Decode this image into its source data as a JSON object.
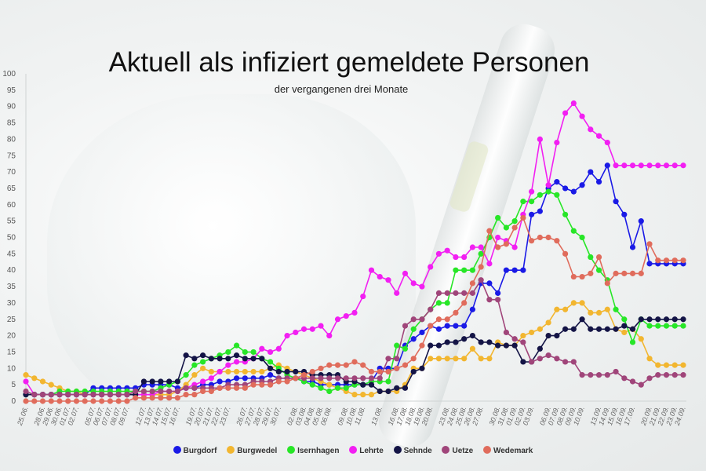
{
  "title": "Aktuell als infiziert gemeldete Personen",
  "subtitle": "der vergangenen drei Monate",
  "chart_data": {
    "type": "line",
    "title": "Aktuell als infiziert gemeldete Personen",
    "subtitle": "der vergangenen drei Monate",
    "ylim": [
      0,
      100
    ],
    "yticks": [
      0,
      5,
      10,
      15,
      20,
      25,
      30,
      35,
      40,
      45,
      50,
      55,
      60,
      65,
      70,
      75,
      80,
      85,
      90,
      95,
      100
    ],
    "grid": false,
    "legend": "bottom",
    "x": [
      "25.06.",
      "26.06.",
      "28.06.",
      "29.06.",
      "30.06.",
      "01.07.",
      "02.07.",
      "03.07.",
      "05.07.",
      "06.07.",
      "07.07.",
      "08.07.",
      "09.07.",
      "10.07.",
      "12.07.",
      "13.07.",
      "14.07.",
      "15.07.",
      "16.07.",
      "17.07.",
      "19.07.",
      "20.07.",
      "21.07.",
      "22.07.",
      "23.07.",
      "24.07.",
      "26.07.",
      "27.07.",
      "28.07.",
      "29.07.",
      "30.07.",
      "31.07.",
      "02.08.",
      "03.08.",
      "04.08.",
      "05.08.",
      "06.08.",
      "07.08.",
      "09.08.",
      "10.08.",
      "11.08.",
      "12.08.",
      "13.08.",
      "14.08.",
      "16.08.",
      "17.08.",
      "18.08.",
      "19.08.",
      "20.08.",
      "21.08.",
      "23.08.",
      "24.08.",
      "25.08.",
      "26.08.",
      "27.08.",
      "28.08.",
      "30.08.",
      "31.08.",
      "01.09.",
      "02.09.",
      "03.09.",
      "04.09.",
      "06.09.",
      "07.09.",
      "08.09.",
      "09.09.",
      "10.09.",
      "11.09.",
      "13.09.",
      "14.09.",
      "15.09.",
      "16.09.",
      "17.09.",
      "18.09.",
      "20.09.",
      "21.09.",
      "22.09.",
      "23.09.",
      "24.09."
    ],
    "xticks": [
      "25.06.",
      "28.06.",
      "29.06.",
      "30.06.",
      "01.07.",
      "02.07.",
      "05.07.",
      "06.07.",
      "07.07.",
      "08.07.",
      "09.07.",
      "12.07.",
      "13.07.",
      "14.07.",
      "15.07.",
      "16.07.",
      "19.07.",
      "20.07.",
      "21.07.",
      "22.07.",
      "23.07.",
      "26.07.",
      "27.07.",
      "28.07.",
      "29.07.",
      "30.07.",
      "02.08.",
      "03.08.",
      "04.08.",
      "05.08.",
      "06.08.",
      "09.08.",
      "10.08.",
      "11.08.",
      "13.08.",
      "16.08.",
      "17.08.",
      "18.08.",
      "19.08.",
      "20.08.",
      "23.08.",
      "24.08.",
      "25.08.",
      "26.08.",
      "27.08.",
      "30.08.",
      "31.08.",
      "01.09.",
      "02.09.",
      "03.09.",
      "06.09.",
      "07.09.",
      "08.09.",
      "09.09.",
      "10.09.",
      "13.09.",
      "14.09.",
      "15.09.",
      "16.09.",
      "17.09.",
      "20.09.",
      "21.09.",
      "22.09.",
      "23.09.",
      "24.09."
    ],
    "series": [
      {
        "name": "Burgdorf",
        "color": "#1a1ae6",
        "values": [
          2,
          2,
          2,
          2,
          2,
          2,
          2,
          2,
          4,
          4,
          4,
          4,
          4,
          4,
          5,
          5,
          5,
          5,
          4,
          4,
          4,
          5,
          5,
          6,
          6,
          7,
          7,
          7,
          7,
          8,
          7,
          7,
          7,
          6,
          6,
          5,
          5,
          5,
          5,
          5,
          5,
          6,
          10,
          10,
          10,
          17,
          19,
          21,
          23,
          22,
          23,
          23,
          23,
          28,
          36,
          36,
          33,
          40,
          40,
          40,
          57,
          58,
          65,
          67,
          65,
          64,
          66,
          70,
          67,
          72,
          61,
          57,
          47,
          55,
          42,
          42,
          42,
          42,
          42
        ]
      },
      {
        "name": "Burgwedel",
        "color": "#f2b630",
        "values": [
          8,
          7,
          6,
          5,
          4,
          3,
          3,
          2,
          2,
          2,
          2,
          2,
          2,
          2,
          2,
          2,
          2,
          2,
          3,
          5,
          8,
          10,
          9,
          9,
          9,
          9,
          9,
          9,
          9,
          10,
          11,
          10,
          9,
          8,
          7,
          6,
          5,
          4,
          3,
          2,
          2,
          2,
          3,
          3,
          3,
          5,
          10,
          10,
          13,
          13,
          13,
          13,
          13,
          16,
          13,
          13,
          18,
          17,
          17,
          20,
          21,
          22,
          24,
          28,
          28,
          30,
          30,
          27,
          27,
          28,
          22,
          21,
          22,
          19,
          13,
          11,
          11,
          11,
          11
        ]
      },
      {
        "name": "Isernhagen",
        "color": "#27e627",
        "values": [
          2,
          2,
          2,
          2,
          3,
          3,
          3,
          3,
          3,
          3,
          3,
          3,
          3,
          3,
          3,
          3,
          4,
          5,
          6,
          8,
          11,
          12,
          13,
          14,
          15,
          17,
          15,
          15,
          13,
          12,
          10,
          8,
          7,
          6,
          5,
          4,
          3,
          4,
          4,
          5,
          5,
          6,
          6,
          6,
          17,
          16,
          22,
          25,
          28,
          30,
          30,
          40,
          40,
          40,
          45,
          50,
          56,
          53,
          55,
          61,
          61,
          63,
          64,
          63,
          57,
          52,
          50,
          44,
          40,
          37,
          28,
          25,
          18,
          25,
          23,
          23,
          23,
          23,
          23
        ]
      },
      {
        "name": "Lehrte",
        "color": "#f21ff2",
        "values": [
          6,
          2,
          2,
          2,
          2,
          2,
          2,
          2,
          2,
          2,
          2,
          2,
          2,
          2,
          2,
          2,
          3,
          3,
          3,
          4,
          5,
          6,
          7,
          9,
          11,
          12,
          12,
          13,
          16,
          15,
          16,
          20,
          21,
          22,
          22,
          23,
          20,
          25,
          26,
          27,
          32,
          40,
          38,
          37,
          33,
          39,
          36,
          35,
          41,
          45,
          46,
          44,
          44,
          47,
          47,
          42,
          50,
          49,
          47,
          57,
          64,
          80,
          66,
          79,
          88,
          91,
          87,
          83,
          81,
          79,
          72,
          72,
          72,
          72,
          72,
          72,
          72,
          72,
          72
        ]
      },
      {
        "name": "Sehnde",
        "color": "#141446",
        "values": [
          2,
          2,
          2,
          2,
          2,
          2,
          2,
          2,
          2,
          2,
          2,
          2,
          2,
          2,
          6,
          6,
          6,
          6,
          6,
          14,
          13,
          14,
          13,
          13,
          13,
          14,
          13,
          13,
          13,
          10,
          9,
          9,
          9,
          9,
          8,
          8,
          8,
          8,
          6,
          6,
          5,
          5,
          3,
          3,
          4,
          4,
          9,
          10,
          17,
          17,
          18,
          18,
          19,
          20,
          18,
          18,
          17,
          17,
          17,
          12,
          12,
          16,
          20,
          20,
          22,
          22,
          25,
          22,
          22,
          22,
          22,
          23,
          22,
          25,
          25,
          25,
          25,
          25,
          25
        ]
      },
      {
        "name": "Uetze",
        "color": "#a0457a",
        "values": [
          3,
          2,
          2,
          2,
          2,
          2,
          2,
          2,
          2,
          2,
          2,
          2,
          2,
          3,
          3,
          3,
          3,
          3,
          3,
          4,
          4,
          4,
          4,
          4,
          5,
          5,
          5,
          6,
          6,
          6,
          7,
          7,
          7,
          7,
          7,
          7,
          7,
          7,
          7,
          7,
          7,
          7,
          7,
          13,
          13,
          23,
          25,
          25,
          28,
          33,
          33,
          33,
          33,
          33,
          37,
          31,
          31,
          21,
          19,
          18,
          12,
          13,
          14,
          13,
          12,
          12,
          8,
          8,
          8,
          8,
          9,
          7,
          6,
          5,
          7,
          8,
          8,
          8,
          8
        ]
      },
      {
        "name": "Wedemark",
        "color": "#e06c5c",
        "values": [
          0,
          0,
          0,
          0,
          0,
          0,
          0,
          0,
          0,
          0,
          0,
          0,
          0,
          1,
          1,
          1,
          1,
          1,
          1,
          2,
          2,
          3,
          3,
          4,
          4,
          4,
          4,
          5,
          5,
          5,
          6,
          6,
          7,
          8,
          9,
          10,
          11,
          11,
          11,
          12,
          11,
          9,
          9,
          9,
          10,
          11,
          13,
          17,
          23,
          25,
          25,
          27,
          30,
          36,
          41,
          52,
          47,
          48,
          53,
          56,
          49,
          50,
          50,
          49,
          45,
          38,
          38,
          39,
          44,
          36,
          39,
          39,
          39,
          39,
          48,
          43,
          43,
          43,
          43
        ]
      }
    ]
  },
  "legend": {
    "items": [
      {
        "label": "Burgdorf",
        "color": "#1a1ae6"
      },
      {
        "label": "Burgwedel",
        "color": "#f2b630"
      },
      {
        "label": "Isernhagen",
        "color": "#27e627"
      },
      {
        "label": "Lehrte",
        "color": "#f21ff2"
      },
      {
        "label": "Sehnde",
        "color": "#141446"
      },
      {
        "label": "Uetze",
        "color": "#a0457a"
      },
      {
        "label": "Wedemark",
        "color": "#e06c5c"
      }
    ]
  }
}
